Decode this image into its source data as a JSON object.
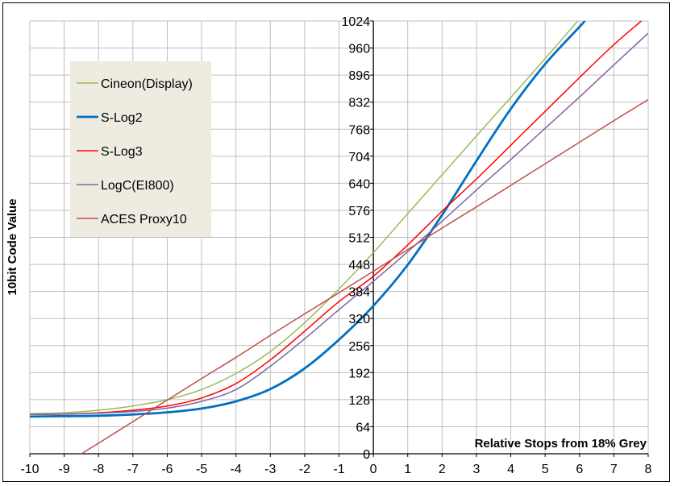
{
  "chart_data": {
    "type": "line",
    "xlabel": "Relative Stops from 18% Grey",
    "ylabel": "10bit Code Value",
    "xlim": [
      -10,
      8
    ],
    "ylim": [
      0,
      1024
    ],
    "x_ticks": [
      "-10",
      "-9",
      "-8",
      "-7",
      "-6",
      "-5",
      "-4",
      "-3",
      "-2",
      "-1",
      "0",
      "1",
      "2",
      "3",
      "4",
      "5",
      "6",
      "7",
      "8"
    ],
    "y_ticks": [
      "0",
      "64",
      "128",
      "192",
      "256",
      "320",
      "384",
      "448",
      "512",
      "576",
      "640",
      "704",
      "768",
      "832",
      "896",
      "960",
      "1024"
    ],
    "grid": true,
    "legend_position": "top-left",
    "series": [
      {
        "name": "Cineon(Display)",
        "color": "#9bbb59",
        "width": 1.5,
        "points": [
          [
            -10,
            95
          ],
          [
            -9,
            97
          ],
          [
            -8,
            103
          ],
          [
            -7,
            113
          ],
          [
            -6,
            128
          ],
          [
            -5,
            152
          ],
          [
            -4,
            190
          ],
          [
            -3,
            242
          ],
          [
            -2,
            310
          ],
          [
            -1,
            390
          ],
          [
            0,
            476
          ],
          [
            1,
            568
          ],
          [
            2,
            660
          ],
          [
            3,
            752
          ],
          [
            4,
            843
          ],
          [
            5,
            935
          ],
          [
            5.95,
            1024
          ]
        ]
      },
      {
        "name": "S-Log2",
        "color": "#0070c0",
        "width": 2.8,
        "points": [
          [
            -10,
            88
          ],
          [
            -9,
            89
          ],
          [
            -8,
            90
          ],
          [
            -7,
            93
          ],
          [
            -6,
            98
          ],
          [
            -5,
            107
          ],
          [
            -4,
            124
          ],
          [
            -3,
            153
          ],
          [
            -2,
            202
          ],
          [
            -1,
            270
          ],
          [
            0,
            350
          ],
          [
            1,
            447
          ],
          [
            2,
            565
          ],
          [
            3,
            693
          ],
          [
            4,
            816
          ],
          [
            5,
            922
          ],
          [
            6,
            1010
          ],
          [
            6.15,
            1024
          ]
        ]
      },
      {
        "name": "S-Log3",
        "color": "#ff0000",
        "width": 1.5,
        "points": [
          [
            -10,
            93
          ],
          [
            -9,
            94
          ],
          [
            -8,
            97
          ],
          [
            -7,
            103
          ],
          [
            -6,
            113
          ],
          [
            -5,
            132
          ],
          [
            -4,
            166
          ],
          [
            -3,
            222
          ],
          [
            -2,
            290
          ],
          [
            -1,
            360
          ],
          [
            0,
            420
          ],
          [
            1,
            494
          ],
          [
            2,
            574
          ],
          [
            3,
            650
          ],
          [
            4,
            730
          ],
          [
            5,
            810
          ],
          [
            6,
            890
          ],
          [
            7,
            968
          ],
          [
            7.8,
            1024
          ]
        ]
      },
      {
        "name": "LogC(EI800)",
        "color": "#8064a2",
        "width": 1.5,
        "points": [
          [
            -10,
            93
          ],
          [
            -9,
            94
          ],
          [
            -8,
            96
          ],
          [
            -7,
            100
          ],
          [
            -6,
            108
          ],
          [
            -5,
            124
          ],
          [
            -4,
            152
          ],
          [
            -3,
            207
          ],
          [
            -2,
            272
          ],
          [
            -1,
            341
          ],
          [
            0,
            408
          ],
          [
            1,
            478
          ],
          [
            2,
            550
          ],
          [
            3,
            624
          ],
          [
            4,
            696
          ],
          [
            5,
            770
          ],
          [
            6,
            844
          ],
          [
            7,
            920
          ],
          [
            8,
            995
          ]
        ]
      },
      {
        "name": "ACES Proxy10",
        "color": "#c0504d",
        "width": 1.5,
        "points": [
          [
            -8.5,
            0
          ],
          [
            -8,
            25
          ],
          [
            -7,
            76
          ],
          [
            -6,
            127
          ],
          [
            -5,
            178
          ],
          [
            -4,
            228
          ],
          [
            -3,
            280
          ],
          [
            -2,
            331
          ],
          [
            -1,
            381
          ],
          [
            0,
            432
          ],
          [
            1,
            483
          ],
          [
            2,
            534
          ],
          [
            3,
            584
          ],
          [
            4,
            635
          ],
          [
            5,
            686
          ],
          [
            6,
            737
          ],
          [
            7,
            788
          ],
          [
            8,
            838
          ]
        ]
      }
    ]
  }
}
